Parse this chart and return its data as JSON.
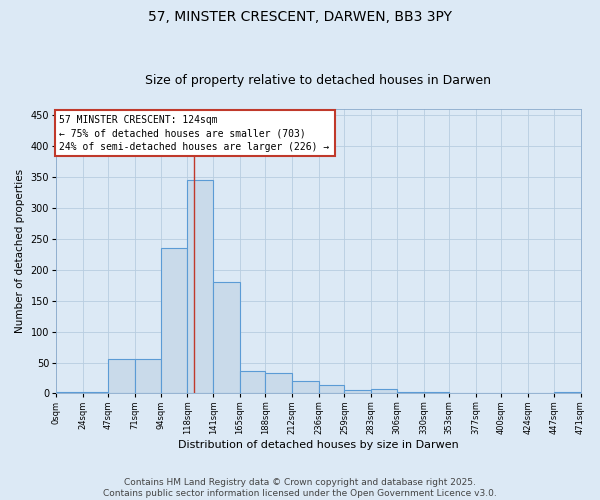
{
  "title1": "57, MINSTER CRESCENT, DARWEN, BB3 3PY",
  "title2": "Size of property relative to detached houses in Darwen",
  "xlabel": "Distribution of detached houses by size in Darwen",
  "ylabel": "Number of detached properties",
  "bin_edges": [
    0,
    24,
    47,
    71,
    94,
    118,
    141,
    165,
    188,
    212,
    236,
    259,
    283,
    306,
    330,
    353,
    377,
    400,
    424,
    447,
    471
  ],
  "bar_heights": [
    2,
    3,
    55,
    55,
    235,
    345,
    180,
    37,
    33,
    21,
    13,
    6,
    7,
    3,
    2,
    1,
    1,
    0,
    0,
    3
  ],
  "bar_color": "#c9daea",
  "bar_edge_color": "#5b9bd5",
  "property_size": 124,
  "vline_color": "#c0392b",
  "annotation_line1": "57 MINSTER CRESCENT: 124sqm",
  "annotation_line2": "← 75% of detached houses are smaller (703)",
  "annotation_line3": "24% of semi-detached houses are larger (226) →",
  "annotation_box_color": "#ffffff",
  "annotation_box_edge_color": "#c0392b",
  "ylim": [
    0,
    460
  ],
  "background_color": "#dce9f5",
  "plot_bg_color": "#dce9f5",
  "footer_text": "Contains HM Land Registry data © Crown copyright and database right 2025.\nContains public sector information licensed under the Open Government Licence v3.0.",
  "title_fontsize": 10,
  "subtitle_fontsize": 9,
  "annotation_fontsize": 7,
  "footer_fontsize": 6.5,
  "tick_fontsize": 6,
  "ylabel_fontsize": 7.5,
  "xlabel_fontsize": 8
}
